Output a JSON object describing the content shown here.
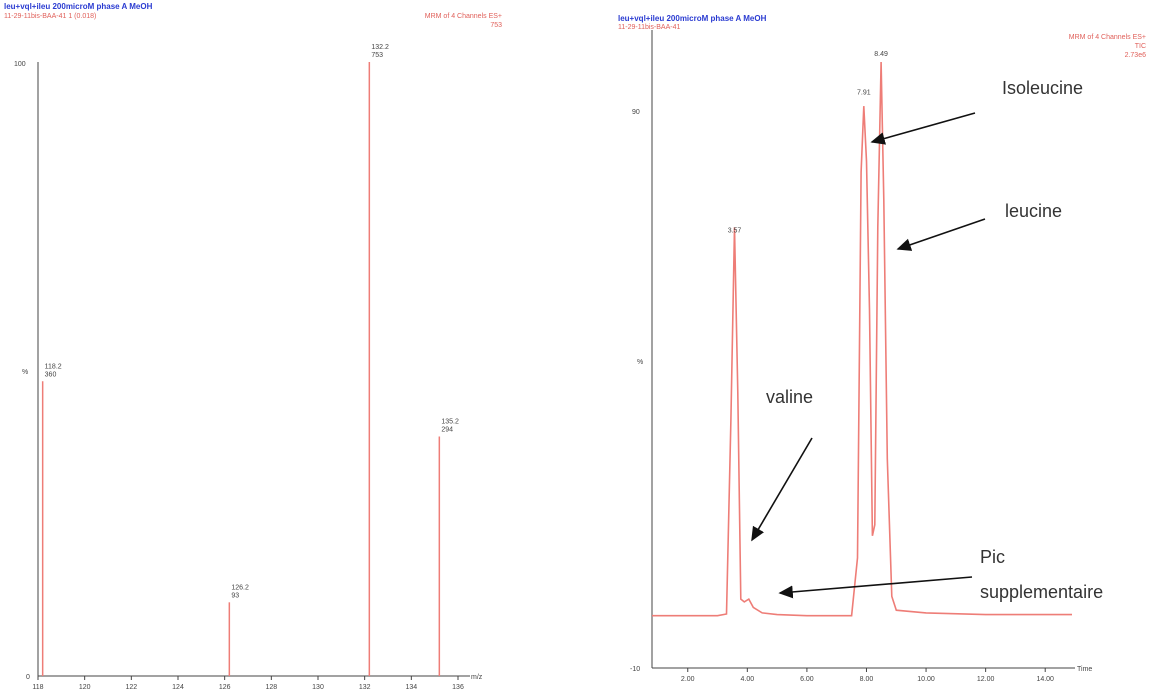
{
  "left": {
    "title": "leu+vql+ileu 200microM phase A MeOH",
    "subtitle": "11-29-11bis-BAA-41 1 (0.018)",
    "header_right_1": "MRM of 4 Channels ES+",
    "header_right_2": "753",
    "axis_unit": "m/z",
    "ytick_top": "100",
    "ytick_mid": "%",
    "ytick_bottom": "0",
    "chart_data": {
      "type": "bar",
      "xlim": [
        118,
        136
      ],
      "ylim": [
        0,
        100
      ],
      "xticks": [
        "118",
        "120",
        "122",
        "124",
        "126",
        "128",
        "130",
        "132",
        "134",
        "136"
      ],
      "peaks": [
        {
          "mz": 118.2,
          "label_mz": "118.2",
          "label_int": "360",
          "rel": 48
        },
        {
          "mz": 126.2,
          "label_mz": "126.2",
          "label_int": "93",
          "rel": 12
        },
        {
          "mz": 132.2,
          "label_mz": "132.2",
          "label_int": "753",
          "rel": 100
        },
        {
          "mz": 135.2,
          "label_mz": "135.2",
          "label_int": "294",
          "rel": 39
        }
      ]
    }
  },
  "right": {
    "title": "leu+vql+ileu 200microM phase A MeOH",
    "subtitle": "11-29-11bis-BAA-41",
    "header_right_1": "MRM of 4 Channels ES+",
    "header_right_2": "TIC",
    "header_right_3": "2.73e6",
    "axis_unit": "Time",
    "ytick_top": "90",
    "ytick_mid": "%",
    "ytick_bottom": "-10",
    "chart_data": {
      "type": "line",
      "xlim": [
        0.8,
        15.0
      ],
      "ylim": [
        -10,
        100
      ],
      "xticks": [
        "2.00",
        "4.00",
        "6.00",
        "8.00",
        "10.00",
        "12.00",
        "14.00"
      ],
      "peak_labels": [
        {
          "t": 3.57,
          "label": "3.57",
          "y": 68
        },
        {
          "t": 7.91,
          "label": "7.91",
          "y": 93
        },
        {
          "t": 8.49,
          "label": "8.49",
          "y": 100
        }
      ],
      "series": [
        {
          "x": [
            0.8,
            2.0,
            3.0,
            3.3,
            3.45,
            3.57,
            3.68,
            3.78,
            3.9,
            4.05,
            4.2,
            4.5,
            5.0,
            6.0,
            7.0,
            7.5,
            7.7,
            7.82,
            7.91,
            8.0,
            8.1,
            8.2,
            8.28,
            8.38,
            8.49,
            8.58,
            8.7,
            8.85,
            9.0,
            10.0,
            12.0,
            14.0,
            14.9
          ],
          "y": [
            -0.5,
            -0.5,
            -0.5,
            -0.2,
            35,
            70,
            40,
            2.5,
            2,
            2.5,
            1,
            0,
            -0.3,
            -0.5,
            -0.5,
            -0.5,
            10,
            80,
            92,
            82,
            55,
            14,
            16,
            70,
            100,
            75,
            28,
            3,
            0.5,
            0,
            -0.3,
            -0.3,
            -0.3
          ]
        }
      ]
    },
    "annotations": {
      "isoleucine": "Isoleucine",
      "leucine": "leucine",
      "valine": "valine",
      "pic_1": "Pic",
      "pic_2": "supplementaire"
    }
  },
  "colors": {
    "trace": "#ee7d77",
    "title": "#2a3bd1",
    "axis": "#444444"
  }
}
